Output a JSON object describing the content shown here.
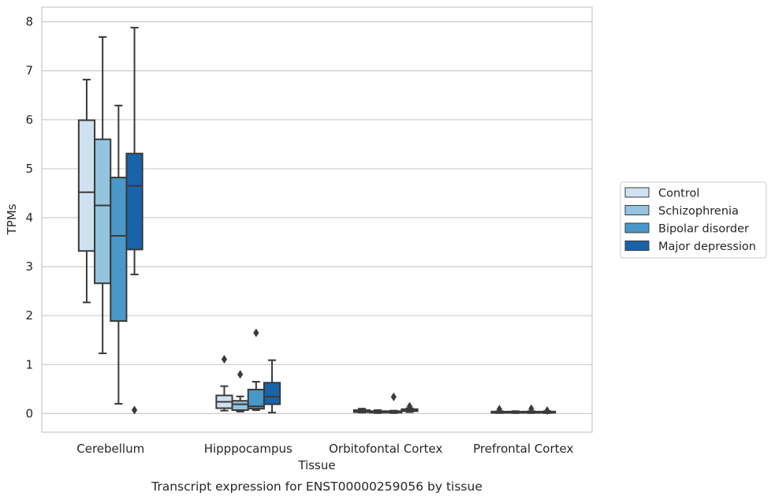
{
  "chart_data": {
    "type": "box",
    "xlabel": "Tissue",
    "ylabel": "TPMs",
    "caption": "Transcript expression for ENST00000259056 by tissue",
    "ylim": [
      -0.38,
      8.3
    ],
    "yticks": [
      0,
      1,
      2,
      3,
      4,
      5,
      6,
      7,
      8
    ],
    "grid": "horizontal",
    "legend_position": "right",
    "categories": [
      "Cerebellum",
      "Hipppocampus",
      "Orbitofontal Cortex",
      "Prefrontal Cortex"
    ],
    "series": [
      {
        "name": "Control",
        "color": "#d0e1f2",
        "boxes": [
          {
            "whislo": 2.27,
            "q1": 3.32,
            "med": 4.52,
            "q3": 5.99,
            "whishi": 6.82,
            "fliers": []
          },
          {
            "whislo": 0.06,
            "q1": 0.11,
            "med": 0.24,
            "q3": 0.37,
            "whishi": 0.56,
            "fliers": [
              1.11
            ]
          },
          {
            "whislo": 0.02,
            "q1": 0.03,
            "med": 0.05,
            "q3": 0.07,
            "whishi": 0.1,
            "fliers": []
          },
          {
            "whislo": 0.01,
            "q1": 0.02,
            "med": 0.03,
            "q3": 0.04,
            "whishi": 0.05,
            "fliers": [
              0.09
            ]
          }
        ]
      },
      {
        "name": "Schizophrenia",
        "color": "#94c4df",
        "boxes": [
          {
            "whislo": 1.23,
            "q1": 2.66,
            "med": 4.25,
            "q3": 5.6,
            "whishi": 7.69,
            "fliers": []
          },
          {
            "whislo": 0.04,
            "q1": 0.07,
            "med": 0.19,
            "q3": 0.26,
            "whishi": 0.35,
            "fliers": [
              0.8
            ]
          },
          {
            "whislo": 0.01,
            "q1": 0.02,
            "med": 0.04,
            "q3": 0.05,
            "whishi": 0.07,
            "fliers": []
          },
          {
            "whislo": 0.01,
            "q1": 0.02,
            "med": 0.03,
            "q3": 0.04,
            "whishi": 0.05,
            "fliers": []
          }
        ]
      },
      {
        "name": "Bipolar disorder",
        "color": "#4a98c9",
        "boxes": [
          {
            "whislo": 0.2,
            "q1": 1.89,
            "med": 3.63,
            "q3": 4.82,
            "whishi": 6.29,
            "fliers": []
          },
          {
            "whislo": 0.07,
            "q1": 0.1,
            "med": 0.15,
            "q3": 0.49,
            "whishi": 0.65,
            "fliers": [
              1.65
            ]
          },
          {
            "whislo": 0.01,
            "q1": 0.02,
            "med": 0.03,
            "q3": 0.05,
            "whishi": 0.06,
            "fliers": [
              0.34
            ]
          },
          {
            "whislo": 0.01,
            "q1": 0.02,
            "med": 0.03,
            "q3": 0.04,
            "whishi": 0.05,
            "fliers": [
              0.1
            ]
          }
        ]
      },
      {
        "name": "Major depression",
        "color": "#1764ab",
        "boxes": [
          {
            "whislo": 2.84,
            "q1": 3.35,
            "med": 4.65,
            "q3": 5.31,
            "whishi": 7.88,
            "fliers": [
              0.07
            ]
          },
          {
            "whislo": 0.02,
            "q1": 0.19,
            "med": 0.34,
            "q3": 0.63,
            "whishi": 1.09,
            "fliers": []
          },
          {
            "whislo": 0.03,
            "q1": 0.05,
            "med": 0.07,
            "q3": 0.09,
            "whishi": 0.11,
            "fliers": [
              0.15
            ]
          },
          {
            "whislo": 0.01,
            "q1": 0.02,
            "med": 0.03,
            "q3": 0.04,
            "whishi": 0.05,
            "fliers": [
              0.06
            ]
          }
        ]
      }
    ]
  }
}
